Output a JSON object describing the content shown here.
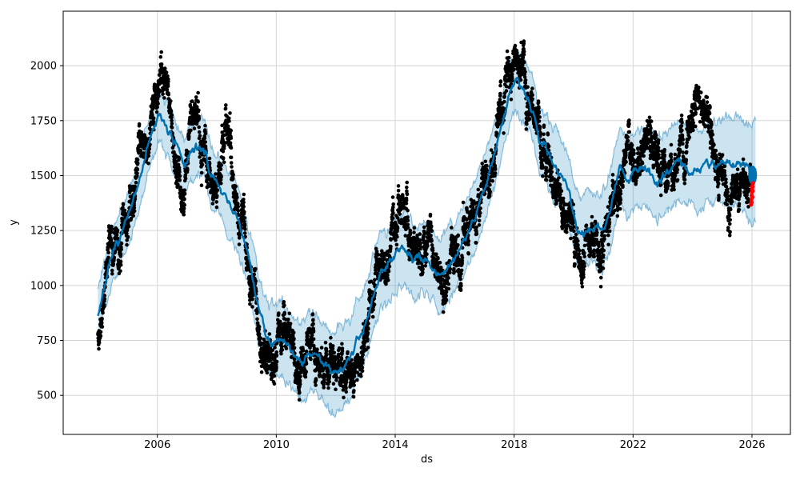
{
  "figure": {
    "kind": "matplotlib-forecast-plot",
    "background": "#ffffff"
  },
  "chart_data": {
    "type": "line",
    "subtype": "time-series forecast with scatter observations and uncertainty band",
    "title": "",
    "xlabel": "ds",
    "ylabel": "y",
    "x_tick_labels": [
      2006,
      2010,
      2014,
      2018,
      2022,
      2026
    ],
    "y_tick_labels": [
      500,
      750,
      1000,
      1250,
      1500,
      1750,
      2000
    ],
    "x_range": [
      2002.83,
      2027.29
    ],
    "y_range": [
      322,
      2248
    ],
    "grid": true,
    "legend": "none",
    "colors": {
      "observed_points": "#000000",
      "forecast_line": "#0072B2",
      "uncertainty_band_fill": "rgba(0,114,178,0.2)",
      "uncertainty_band_edge": "rgba(0,114,178,0.42)",
      "anomaly_points": "#ff0000",
      "grid": "#d5d5d5",
      "spine": "#000000"
    },
    "forecast_trend": [
      [
        2004.0,
        865
      ],
      [
        2004.15,
        960
      ],
      [
        2004.3,
        1040
      ],
      [
        2004.5,
        1130
      ],
      [
        2004.7,
        1200
      ],
      [
        2004.9,
        1270
      ],
      [
        2005.1,
        1330
      ],
      [
        2005.3,
        1430
      ],
      [
        2005.5,
        1540
      ],
      [
        2005.7,
        1640
      ],
      [
        2005.9,
        1725
      ],
      [
        2006.1,
        1768
      ],
      [
        2006.3,
        1730
      ],
      [
        2006.55,
        1650
      ],
      [
        2006.9,
        1545
      ],
      [
        2007.1,
        1600
      ],
      [
        2007.3,
        1622
      ],
      [
        2007.5,
        1620
      ],
      [
        2007.65,
        1600
      ],
      [
        2007.8,
        1490
      ],
      [
        2008.0,
        1473
      ],
      [
        2008.2,
        1420
      ],
      [
        2008.4,
        1360
      ],
      [
        2008.6,
        1330
      ],
      [
        2008.75,
        1285
      ],
      [
        2008.95,
        1180
      ],
      [
        2009.15,
        1080
      ],
      [
        2009.4,
        900
      ],
      [
        2009.6,
        800
      ],
      [
        2009.8,
        750
      ],
      [
        2010.0,
        755
      ],
      [
        2010.2,
        765
      ],
      [
        2010.4,
        720
      ],
      [
        2010.65,
        680
      ],
      [
        2010.85,
        655
      ],
      [
        2011.05,
        695
      ],
      [
        2011.25,
        695
      ],
      [
        2011.5,
        660
      ],
      [
        2011.7,
        630
      ],
      [
        2011.9,
        608
      ],
      [
        2012.1,
        630
      ],
      [
        2012.3,
        650
      ],
      [
        2012.5,
        660
      ],
      [
        2012.7,
        755
      ],
      [
        2012.9,
        800
      ],
      [
        2013.1,
        870
      ],
      [
        2013.3,
        990
      ],
      [
        2013.5,
        1060
      ],
      [
        2013.7,
        1085
      ],
      [
        2013.9,
        1120
      ],
      [
        2014.1,
        1150
      ],
      [
        2014.35,
        1171
      ],
      [
        2014.6,
        1110
      ],
      [
        2014.8,
        1115
      ],
      [
        2015.05,
        1122
      ],
      [
        2015.3,
        1085
      ],
      [
        2015.5,
        1050
      ],
      [
        2015.7,
        1080
      ],
      [
        2015.9,
        1105
      ],
      [
        2016.1,
        1150
      ],
      [
        2016.3,
        1207
      ],
      [
        2016.6,
        1291
      ],
      [
        2016.85,
        1377
      ],
      [
        2017.1,
        1486
      ],
      [
        2017.4,
        1620
      ],
      [
        2017.65,
        1764
      ],
      [
        2017.9,
        1890
      ],
      [
        2018.05,
        1940
      ],
      [
        2018.3,
        1898
      ],
      [
        2018.55,
        1837
      ],
      [
        2018.7,
        1760
      ],
      [
        2018.85,
        1660
      ],
      [
        2019.1,
        1607
      ],
      [
        2019.4,
        1546
      ],
      [
        2019.6,
        1500
      ],
      [
        2019.85,
        1425
      ],
      [
        2020.1,
        1268
      ],
      [
        2020.25,
        1232
      ],
      [
        2020.55,
        1273
      ],
      [
        2020.75,
        1262
      ],
      [
        2020.95,
        1235
      ],
      [
        2021.2,
        1316
      ],
      [
        2021.4,
        1450
      ],
      [
        2021.55,
        1540
      ],
      [
        2021.8,
        1475
      ],
      [
        2022.0,
        1528
      ],
      [
        2022.3,
        1535
      ],
      [
        2022.55,
        1523
      ],
      [
        2022.8,
        1475
      ],
      [
        2023.1,
        1509
      ],
      [
        2023.4,
        1546
      ],
      [
        2023.65,
        1564
      ],
      [
        2023.9,
        1537
      ],
      [
        2024.2,
        1510
      ],
      [
        2024.5,
        1570
      ],
      [
        2024.75,
        1552
      ],
      [
        2025.0,
        1564
      ],
      [
        2025.3,
        1552
      ],
      [
        2025.55,
        1564
      ],
      [
        2025.8,
        1540
      ],
      [
        2026.0,
        1512
      ],
      [
        2026.13,
        1520
      ]
    ],
    "uncertainty_halfwidth": [
      [
        2004.0,
        115
      ],
      [
        2006.0,
        125
      ],
      [
        2008.0,
        135
      ],
      [
        2010.0,
        160
      ],
      [
        2012.0,
        180
      ],
      [
        2014.0,
        165
      ],
      [
        2016.0,
        160
      ],
      [
        2018.0,
        140
      ],
      [
        2020.0,
        160
      ],
      [
        2022.0,
        180
      ],
      [
        2024.0,
        180
      ],
      [
        2025.3,
        195
      ],
      [
        2025.9,
        220
      ],
      [
        2026.13,
        240
      ]
    ],
    "observed_mean": [
      [
        2004.0,
        790
      ],
      [
        2004.1,
        820
      ],
      [
        2004.25,
        1060
      ],
      [
        2004.4,
        1150
      ],
      [
        2004.55,
        1210
      ],
      [
        2004.7,
        1300
      ],
      [
        2004.85,
        1370
      ],
      [
        2005.0,
        1300
      ],
      [
        2005.15,
        1450
      ],
      [
        2005.3,
        1560
      ],
      [
        2005.5,
        1700
      ],
      [
        2005.65,
        1630
      ],
      [
        2005.8,
        1800
      ],
      [
        2006.0,
        1920
      ],
      [
        2006.15,
        2040
      ],
      [
        2006.3,
        1860
      ],
      [
        2006.45,
        1870
      ],
      [
        2006.6,
        1560
      ],
      [
        2006.75,
        1480
      ],
      [
        2006.9,
        1450
      ],
      [
        2007.05,
        1790
      ],
      [
        2007.2,
        1830
      ],
      [
        2007.35,
        1710
      ],
      [
        2007.5,
        1700
      ],
      [
        2007.65,
        1540
      ],
      [
        2007.8,
        1450
      ],
      [
        2007.95,
        1420
      ],
      [
        2008.1,
        1550
      ],
      [
        2008.3,
        1760
      ],
      [
        2008.45,
        1700
      ],
      [
        2008.6,
        1410
      ],
      [
        2008.75,
        1300
      ],
      [
        2008.9,
        1250
      ],
      [
        2009.05,
        1050
      ],
      [
        2009.2,
        960
      ],
      [
        2009.35,
        860
      ],
      [
        2009.5,
        790
      ],
      [
        2009.65,
        710
      ],
      [
        2009.8,
        670
      ],
      [
        2009.95,
        645
      ],
      [
        2010.1,
        750
      ],
      [
        2010.25,
        800
      ],
      [
        2010.4,
        750
      ],
      [
        2010.55,
        700
      ],
      [
        2010.7,
        655
      ],
      [
        2010.85,
        625
      ],
      [
        2011.0,
        700
      ],
      [
        2011.15,
        750
      ],
      [
        2011.3,
        720
      ],
      [
        2011.45,
        680
      ],
      [
        2011.6,
        645
      ],
      [
        2011.75,
        625
      ],
      [
        2011.9,
        605
      ],
      [
        2012.05,
        645
      ],
      [
        2012.2,
        680
      ],
      [
        2012.35,
        645
      ],
      [
        2012.5,
        625
      ],
      [
        2012.65,
        645
      ],
      [
        2012.8,
        625
      ],
      [
        2012.95,
        705
      ],
      [
        2013.1,
        900
      ],
      [
        2013.25,
        1000
      ],
      [
        2013.4,
        1100
      ],
      [
        2013.55,
        1150
      ],
      [
        2013.7,
        1060
      ],
      [
        2013.85,
        1180
      ],
      [
        2014.0,
        1260
      ],
      [
        2014.15,
        1350
      ],
      [
        2014.3,
        1320
      ],
      [
        2014.45,
        1250
      ],
      [
        2014.6,
        1160
      ],
      [
        2014.75,
        1110
      ],
      [
        2014.9,
        1150
      ],
      [
        2015.05,
        1210
      ],
      [
        2015.2,
        1220
      ],
      [
        2015.35,
        1150
      ],
      [
        2015.5,
        1060
      ],
      [
        2015.65,
        1010
      ],
      [
        2015.8,
        1060
      ],
      [
        2015.95,
        1110
      ],
      [
        2016.1,
        1060
      ],
      [
        2016.25,
        1150
      ],
      [
        2016.4,
        1250
      ],
      [
        2016.55,
        1300
      ],
      [
        2016.7,
        1260
      ],
      [
        2016.85,
        1350
      ],
      [
        2017.0,
        1450
      ],
      [
        2017.15,
        1510
      ],
      [
        2017.3,
        1600
      ],
      [
        2017.45,
        1660
      ],
      [
        2017.6,
        1750
      ],
      [
        2017.75,
        1860
      ],
      [
        2017.9,
        1980
      ],
      [
        2018.05,
        2020
      ],
      [
        2018.2,
        2000
      ],
      [
        2018.35,
        1950
      ],
      [
        2018.5,
        1900
      ],
      [
        2018.65,
        1800
      ],
      [
        2018.8,
        1710
      ],
      [
        2018.95,
        1650
      ],
      [
        2019.1,
        1600
      ],
      [
        2019.25,
        1510
      ],
      [
        2019.4,
        1450
      ],
      [
        2019.55,
        1400
      ],
      [
        2019.7,
        1350
      ],
      [
        2019.85,
        1300
      ],
      [
        2020.0,
        1240
      ],
      [
        2020.15,
        1120
      ],
      [
        2020.3,
        1070
      ],
      [
        2020.45,
        1150
      ],
      [
        2020.6,
        1200
      ],
      [
        2020.75,
        1160
      ],
      [
        2020.9,
        1110
      ],
      [
        2021.05,
        1250
      ],
      [
        2021.2,
        1310
      ],
      [
        2021.35,
        1380
      ],
      [
        2021.5,
        1450
      ],
      [
        2021.65,
        1510
      ],
      [
        2021.8,
        1590
      ],
      [
        2021.95,
        1510
      ],
      [
        2022.1,
        1460
      ],
      [
        2022.25,
        1500
      ],
      [
        2022.4,
        1550
      ],
      [
        2022.55,
        1600
      ],
      [
        2022.7,
        1640
      ],
      [
        2022.85,
        1600
      ],
      [
        2023.0,
        1550
      ],
      [
        2023.15,
        1460
      ],
      [
        2023.3,
        1500
      ],
      [
        2023.45,
        1550
      ],
      [
        2023.6,
        1610
      ],
      [
        2023.75,
        1700
      ],
      [
        2023.9,
        1750
      ],
      [
        2024.05,
        1800
      ],
      [
        2024.2,
        1840
      ],
      [
        2024.35,
        1790
      ],
      [
        2024.5,
        1700
      ],
      [
        2024.65,
        1610
      ],
      [
        2024.8,
        1550
      ],
      [
        2024.95,
        1500
      ],
      [
        2025.1,
        1450
      ],
      [
        2025.25,
        1320
      ],
      [
        2025.4,
        1400
      ],
      [
        2025.55,
        1450
      ],
      [
        2025.7,
        1490
      ],
      [
        2025.85,
        1450
      ],
      [
        2025.95,
        1430
      ]
    ],
    "observed_scatter": {
      "start": 2004.0,
      "end": 2025.95,
      "points_per_year": 255,
      "scatter_sd": 60,
      "marker_diameter_px": 4.6
    },
    "forecast_end_marker": {
      "x": 2026.02,
      "y": 1502
    },
    "anomaly_points": [
      [
        2025.97,
        1368
      ],
      [
        2025.98,
        1392
      ],
      [
        2025.99,
        1378
      ],
      [
        2025.99,
        1410
      ],
      [
        2026.0,
        1425
      ],
      [
        2026.0,
        1438
      ],
      [
        2026.01,
        1402
      ],
      [
        2026.01,
        1452
      ],
      [
        2026.02,
        1430
      ],
      [
        2026.02,
        1448
      ],
      [
        2026.03,
        1465
      ]
    ],
    "render_seeds": {
      "scatter": 1337,
      "line": 7,
      "band_upper": 11,
      "band_lower": 23
    }
  }
}
